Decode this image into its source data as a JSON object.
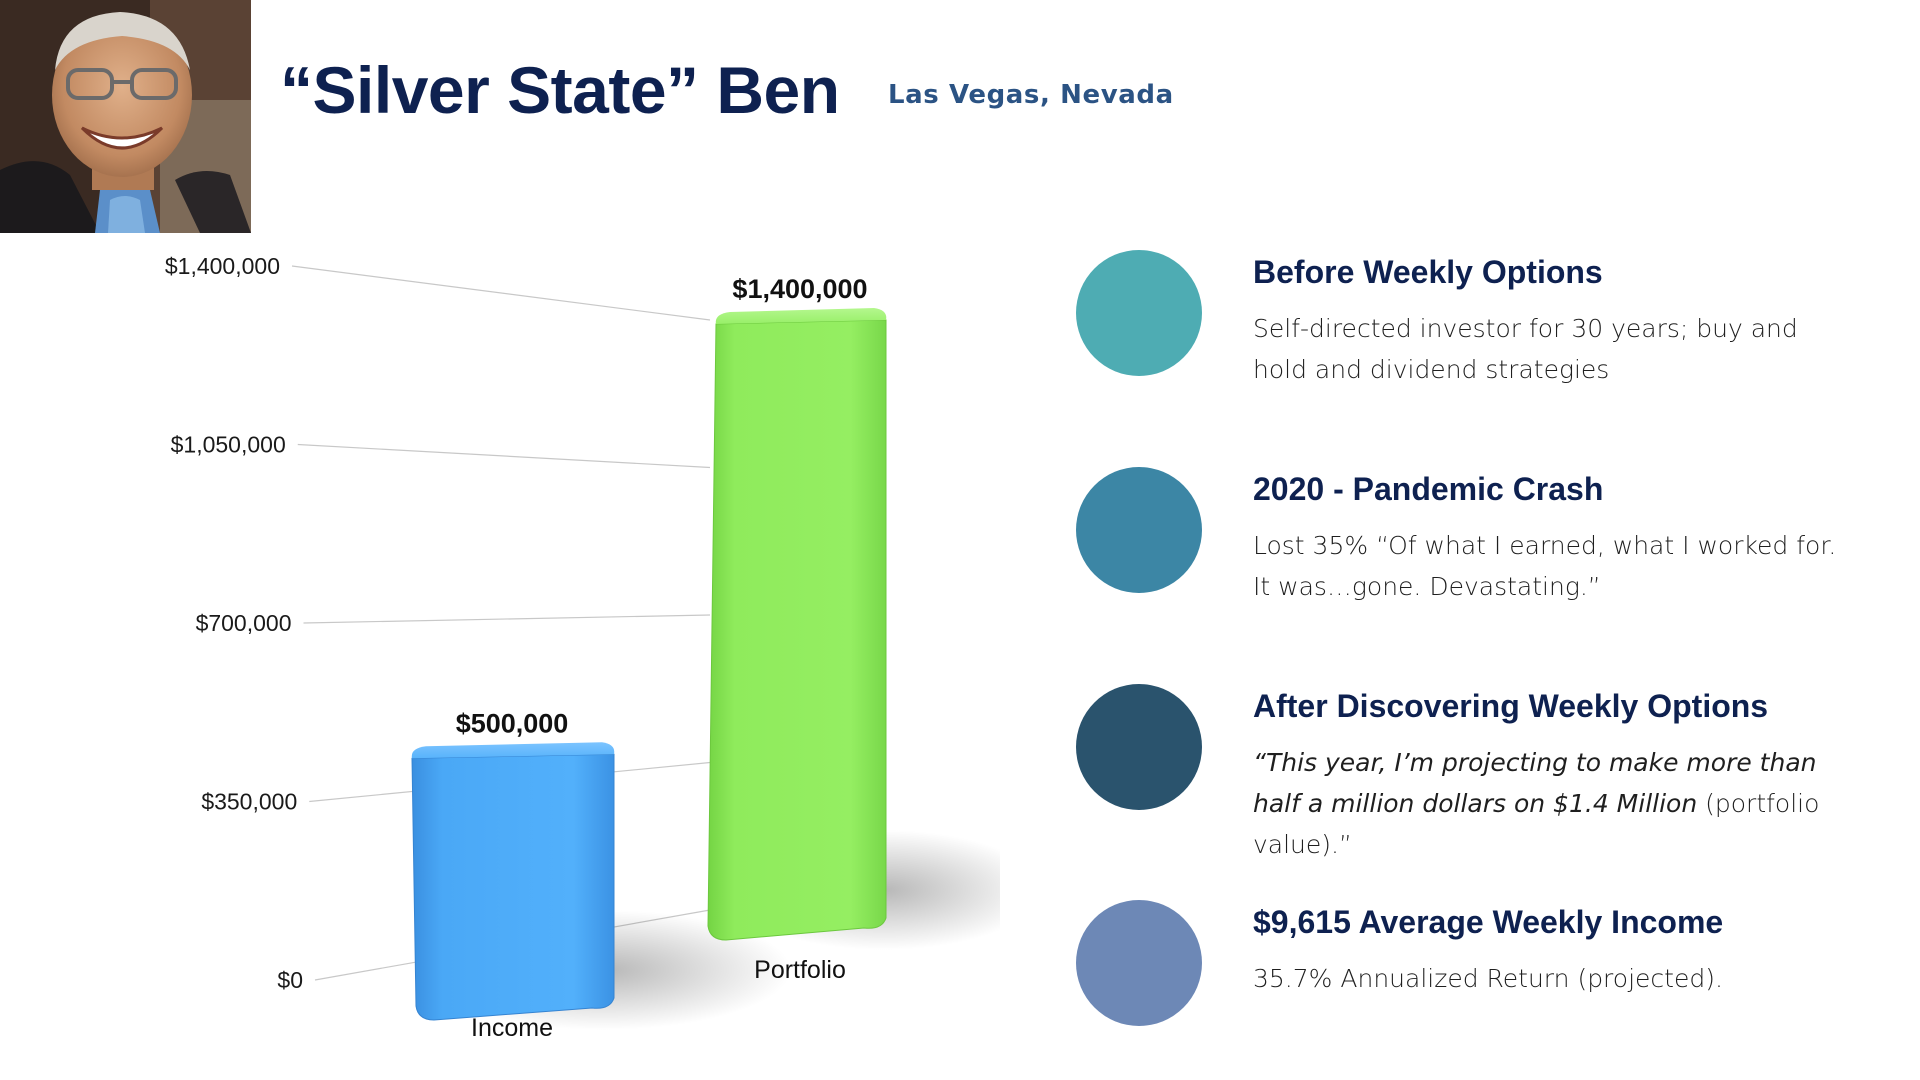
{
  "header": {
    "title": "“Silver State” Ben",
    "subtitle": "Las Vegas, Nevada"
  },
  "colors": {
    "title": "#0e2150",
    "subtitle": "#2b5384",
    "income_bar": "#4aa8f6",
    "portfolio_bar": "#8feb5c"
  },
  "chart_data": {
    "type": "bar",
    "categories": [
      "Income",
      "Portfolio"
    ],
    "values": [
      500000,
      1400000
    ],
    "data_labels": [
      "$500,000",
      "$1,400,000"
    ],
    "ytick_labels": [
      "$0",
      "$350,000",
      "$700,000",
      "$1,050,000",
      "$1,400,000"
    ],
    "ytick_values": [
      0,
      350000,
      700000,
      1050000,
      1400000
    ],
    "ylim": [
      0,
      1400000
    ],
    "grid": true,
    "style": "3d"
  },
  "timeline": [
    {
      "heading": "Before Weekly Options",
      "body": "Self-directed investor for 30 years; buy and hold and dividend strategies",
      "quote": "",
      "color": "#4eacb3"
    },
    {
      "heading": "2020 - Pandemic Crash",
      "body": "Lost 35% “Of what I earned, what I worked for. It was…gone. Devastating.”",
      "quote": "",
      "color": "#3c86a5"
    },
    {
      "heading": "After Discovering Weekly Options",
      "body": "(portfolio value).”",
      "quote": "“This year, I’m projecting to make more than half a million dollars on $1.4 Million",
      "color": "#2a536d"
    },
    {
      "heading": "$9,615 Average Weekly Income",
      "body": "35.7% Annualized Return (projected).",
      "quote": "",
      "color": "#6d88b6"
    }
  ]
}
